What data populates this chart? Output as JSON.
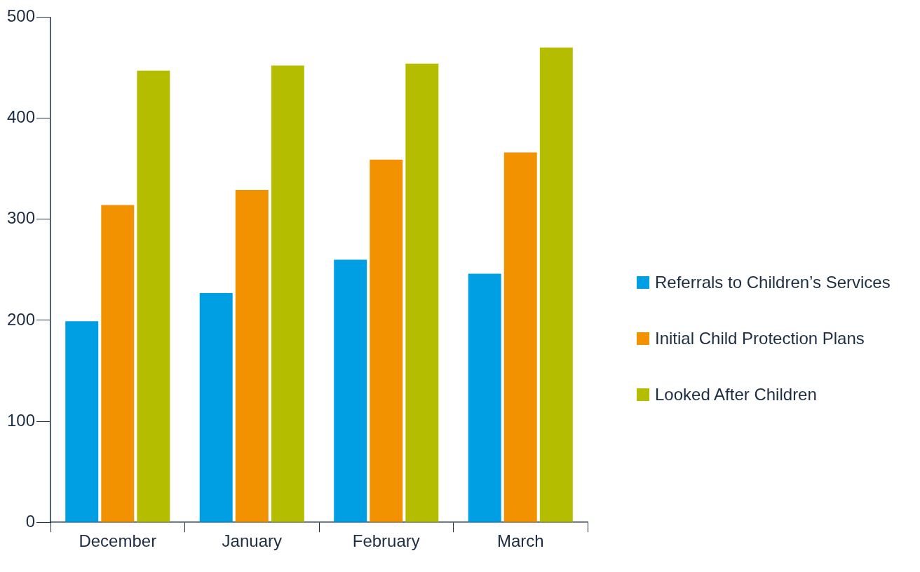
{
  "chart_data": {
    "type": "bar",
    "categories": [
      "December",
      "January",
      "February",
      "March"
    ],
    "series": [
      {
        "name": "Referrals to Children’s Services",
        "color": "#009fe3",
        "values": [
          199,
          227,
          260,
          246
        ]
      },
      {
        "name": "Initial Child Protection Plans",
        "color": "#f39200",
        "values": [
          314,
          329,
          359,
          366
        ]
      },
      {
        "name": "Looked After Children",
        "color": "#b5bd00",
        "values": [
          447,
          452,
          454,
          470
        ]
      }
    ],
    "ylim": [
      0,
      500
    ],
    "yticks": [
      0,
      100,
      200,
      300,
      400,
      500
    ],
    "grid": false,
    "legend": "right"
  }
}
